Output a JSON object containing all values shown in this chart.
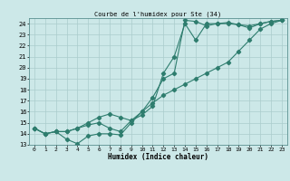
{
  "title": "Courbe de l'humidex pour Ste (34)",
  "xlabel": "Humidex (Indice chaleur)",
  "xlim": [
    -0.5,
    23.5
  ],
  "ylim": [
    13.0,
    24.5
  ],
  "yticks": [
    13,
    14,
    15,
    16,
    17,
    18,
    19,
    20,
    21,
    22,
    23,
    24
  ],
  "xticks": [
    0,
    1,
    2,
    3,
    4,
    5,
    6,
    7,
    8,
    9,
    10,
    11,
    12,
    13,
    14,
    15,
    16,
    17,
    18,
    19,
    20,
    21,
    22,
    23
  ],
  "line_color": "#2e7d6e",
  "bg_color": "#cce8e8",
  "grid_color": "#aacccc",
  "line1_x": [
    0,
    1,
    2,
    3,
    4,
    5,
    6,
    7,
    8,
    9,
    10,
    11,
    12,
    13,
    14,
    15,
    16,
    17,
    18,
    19,
    20,
    21,
    22,
    23
  ],
  "line1_y": [
    14.5,
    14.0,
    14.2,
    13.5,
    13.1,
    13.8,
    14.0,
    14.0,
    13.9,
    15.0,
    16.0,
    17.3,
    19.0,
    19.5,
    24.3,
    24.2,
    23.8,
    24.0,
    24.0,
    23.9,
    23.8,
    24.0,
    24.2,
    24.3
  ],
  "line2_x": [
    0,
    1,
    2,
    3,
    4,
    5,
    6,
    7,
    8,
    9,
    10,
    11,
    12,
    13,
    14,
    15,
    16,
    17,
    18,
    19,
    20,
    21,
    22,
    23
  ],
  "line2_y": [
    14.5,
    14.0,
    14.2,
    14.2,
    14.5,
    14.8,
    15.0,
    14.5,
    14.2,
    15.2,
    15.7,
    16.5,
    19.5,
    21.0,
    24.0,
    22.5,
    24.0,
    24.0,
    24.1,
    23.9,
    23.6,
    24.0,
    24.2,
    24.3
  ],
  "line3_x": [
    0,
    1,
    2,
    3,
    4,
    5,
    6,
    7,
    8,
    9,
    10,
    11,
    12,
    13,
    14,
    15,
    16,
    17,
    18,
    19,
    20,
    21,
    22,
    23
  ],
  "line3_y": [
    14.5,
    14.0,
    14.2,
    14.2,
    14.5,
    15.0,
    15.5,
    15.8,
    15.5,
    15.2,
    16.0,
    16.8,
    17.5,
    18.0,
    18.5,
    19.0,
    19.5,
    20.0,
    20.5,
    21.5,
    22.5,
    23.5,
    24.0,
    24.3
  ]
}
